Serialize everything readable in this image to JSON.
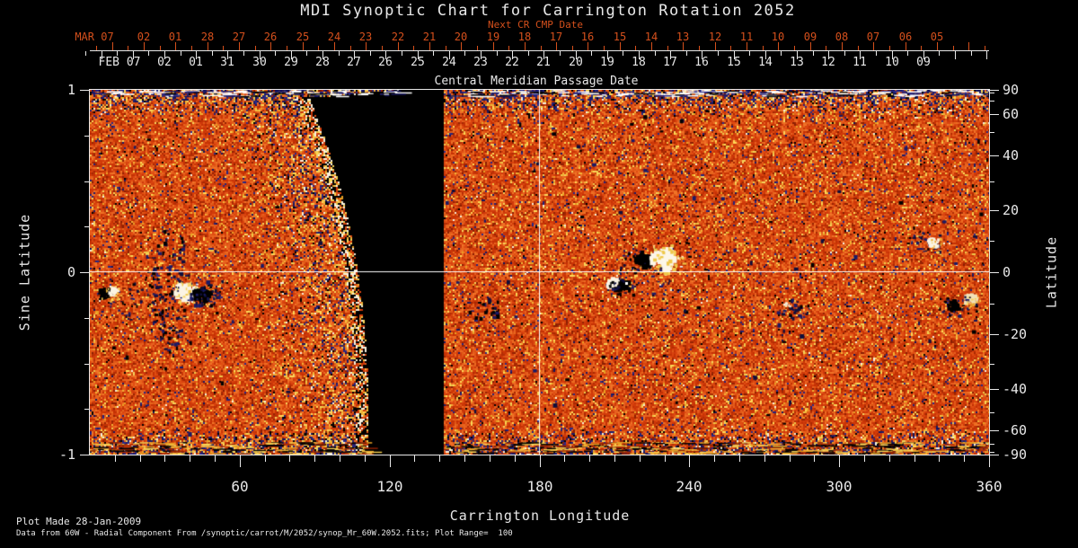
{
  "title": "MDI Synoptic Chart for Carrington Rotation 2052",
  "colors": {
    "background": "#000000",
    "foreground": "#e8e8e8",
    "date_accent": "#d5501c",
    "crosshair": "#ffffff",
    "map_base": [
      "#d23b0a",
      "#c93405",
      "#e04d12",
      "#d94410",
      "#cd380b",
      "#e05a18",
      "#c33104"
    ],
    "map_light": [
      "#e8661e",
      "#f07428",
      "#ee6c22",
      "#e76020"
    ],
    "map_deep": [
      "#a62803",
      "#962302",
      "#b32d05",
      "#8a1e02"
    ],
    "map_yellow": [
      "#f2b236",
      "#eec84a",
      "#f6d35c",
      "#e9a024",
      "#ffd957"
    ],
    "map_blue": [
      "#1a1a66",
      "#26227a",
      "#14145a",
      "#2a2a88"
    ],
    "map_dark": [
      "#000000",
      "#0e0e3c",
      "#1a1a66"
    ],
    "map_white": "#fbf4e4"
  },
  "cmp_axis": {
    "next_cr_label": "Next CR CMP Date",
    "axis_label": "Central Meridian Passage Date",
    "next_cr_dates": [
      "MAR 07",
      "02",
      "01",
      "28",
      "27",
      "26",
      "25",
      "24",
      "23",
      "22",
      "21",
      "20",
      "19",
      "18",
      "17",
      "16",
      "15",
      "14",
      "13",
      "12",
      "11",
      "10",
      "09",
      "08",
      "07",
      "06",
      "05"
    ],
    "cmp_dates": [
      "FEB 07",
      "02",
      "01",
      "31",
      "30",
      "29",
      "28",
      "27",
      "26",
      "25",
      "24",
      "23",
      "22",
      "21",
      "20",
      "19",
      "18",
      "17",
      "16",
      "15",
      "14",
      "13",
      "12",
      "11",
      "10",
      "09"
    ]
  },
  "left_axis": {
    "label": "Sine Latitude",
    "major_ticks": [
      {
        "v": 1,
        "label": "1"
      },
      {
        "v": 0,
        "label": "0"
      },
      {
        "v": -1,
        "label": "-1"
      }
    ],
    "minor_tick_values": [
      0.75,
      0.5,
      0.25,
      -0.25,
      -0.5,
      -0.75
    ]
  },
  "right_axis": {
    "label": "Latitude",
    "major_ticks": [
      {
        "deg": 90,
        "label": "90"
      },
      {
        "deg": 60,
        "label": "60"
      },
      {
        "deg": 40,
        "label": "40"
      },
      {
        "deg": 20,
        "label": "20"
      },
      {
        "deg": 0,
        "label": "0"
      },
      {
        "deg": -20,
        "label": "-20"
      },
      {
        "deg": -40,
        "label": "-40"
      },
      {
        "deg": -60,
        "label": "-60"
      },
      {
        "deg": -90,
        "label": "-90"
      }
    ],
    "minor_tick_degrees": [
      80,
      70,
      50,
      30,
      10,
      -10,
      -30,
      -50,
      -70,
      -80
    ]
  },
  "bottom_axis": {
    "label": "Carrington Longitude",
    "major_ticks": [
      {
        "deg": 60,
        "label": "60"
      },
      {
        "deg": 120,
        "label": "120"
      },
      {
        "deg": 180,
        "label": "180"
      },
      {
        "deg": 240,
        "label": "240"
      },
      {
        "deg": 300,
        "label": "300"
      },
      {
        "deg": 360,
        "label": "360"
      }
    ],
    "minor_tick_step_deg": 10
  },
  "footer": {
    "line1": "Plot Made 28-Jan-2009",
    "line2": "Data from 60W - Radial Component From /synoptic/carrot/M/2052/synop_Mr_60W.2052.fits; Plot Range=  100"
  },
  "chart_data": {
    "type": "heatmap",
    "title": "MDI Synoptic Chart for Carrington Rotation 2052",
    "xlabel": "Carrington Longitude",
    "ylabel_left": "Sine Latitude",
    "ylabel_right": "Latitude",
    "x_range_deg": [
      0,
      360
    ],
    "y_range_sine_latitude": [
      -1,
      1
    ],
    "value_range_gauss": [
      -100,
      100
    ],
    "colormap": "solar magnetogram: orange/red background noise, positive fields white/yellow, negative fields dark blue/black",
    "crosshair": {
      "longitude_deg": 180,
      "latitude_deg": 0
    },
    "data_gap": {
      "description": "black unobserved wedge; left segment ends on limb-shaped curve",
      "longitude_deg": [
        87,
        141
      ]
    },
    "polar_noise": "dense mixed blue/yellow/white speckle near both poles, ragged black/white streaks along top and bottom edges",
    "top_axis_next_cr_cmp_dates": [
      "MAR 07",
      "02",
      "01",
      "28",
      "27",
      "26",
      "25",
      "24",
      "23",
      "22",
      "21",
      "20",
      "19",
      "18",
      "17",
      "16",
      "15",
      "14",
      "13",
      "12",
      "11",
      "10",
      "09",
      "08",
      "07",
      "06",
      "05"
    ],
    "top_axis_cmp_dates": [
      "FEB 07",
      "02",
      "01",
      "31",
      "30",
      "29",
      "28",
      "27",
      "26",
      "25",
      "24",
      "23",
      "22",
      "21",
      "20",
      "19",
      "18",
      "17",
      "16",
      "15",
      "14",
      "13",
      "12",
      "11",
      "10",
      "09"
    ],
    "active_regions": [
      {
        "longitude_deg": 9,
        "latitude_deg": -7,
        "description": "small bipolar spot: black leading, white trailing"
      },
      {
        "longitude_deg": 40,
        "latitude_deg": -7,
        "description": "large bipolar region: bright white core with black patches, vertical chain of dark flux to its north"
      },
      {
        "longitude_deg": 158,
        "latitude_deg": -12,
        "description": "small dark flux cluster"
      },
      {
        "longitude_deg": 224,
        "latitude_deg": 3,
        "description": "strong bipolar pair: white/yellow mass with black blob (north), white+black pair just south of equator"
      },
      {
        "longitude_deg": 282,
        "latitude_deg": -12,
        "description": "dark flux cluster with bright speck"
      },
      {
        "longitude_deg": 338,
        "latitude_deg": 8,
        "description": "dark cluster with white arc"
      },
      {
        "longitude_deg": 344,
        "latitude_deg": -12,
        "description": "black blob with yellow-white arc"
      }
    ]
  }
}
